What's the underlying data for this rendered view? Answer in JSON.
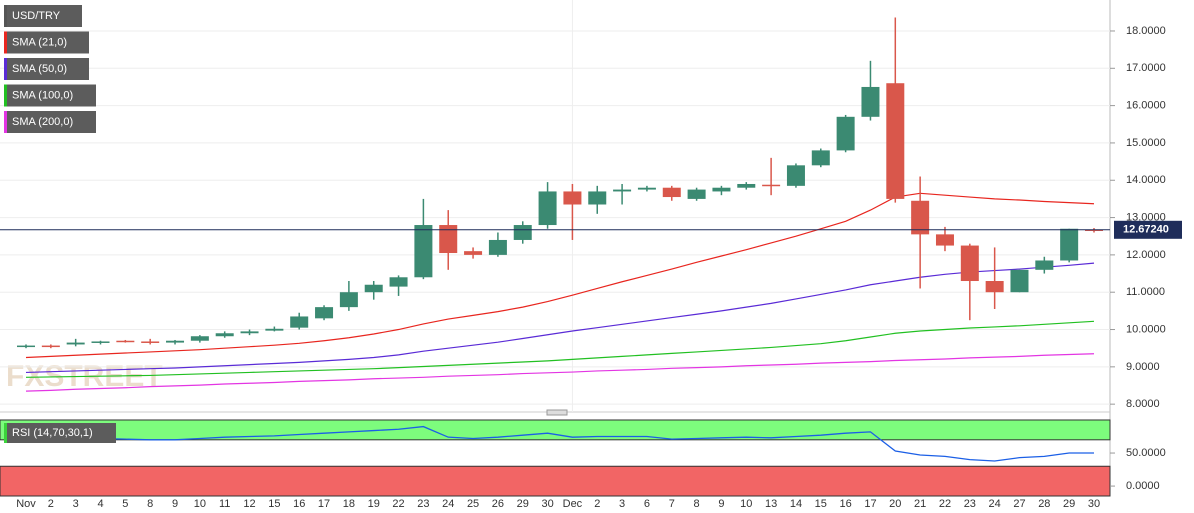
{
  "chart_data": [
    {
      "type": "candlestick",
      "legend": [
        "USD/TRY",
        "SMA (21,0)",
        "SMA (50,0)",
        "SMA (100,0)",
        "SMA (200,0)"
      ],
      "watermark": "FXSTREET",
      "categories": [
        "Nov",
        "2",
        "3",
        "4",
        "5",
        "8",
        "9",
        "10",
        "11",
        "12",
        "15",
        "16",
        "17",
        "18",
        "19",
        "22",
        "23",
        "24",
        "25",
        "26",
        "29",
        "30",
        "Dec",
        "2",
        "3",
        "6",
        "7",
        "8",
        "9",
        "10",
        "13",
        "14",
        "15",
        "16",
        "17",
        "20",
        "21",
        "22",
        "23",
        "24",
        "27",
        "28",
        "29",
        "30"
      ],
      "open": [
        9.55,
        9.57,
        9.6,
        9.65,
        9.7,
        9.68,
        9.65,
        9.7,
        9.82,
        9.9,
        9.97,
        10.05,
        10.3,
        10.6,
        11.0,
        11.15,
        11.4,
        12.8,
        12.1,
        12.0,
        12.4,
        12.8,
        13.7,
        13.35,
        13.7,
        13.75,
        13.8,
        13.5,
        13.7,
        13.8,
        13.88,
        13.85,
        14.4,
        14.8,
        15.7,
        16.6,
        13.45,
        12.55,
        12.25,
        11.3,
        11.0,
        11.6,
        11.85,
        12.68
      ],
      "high": [
        9.6,
        9.6,
        9.75,
        9.7,
        9.72,
        9.75,
        9.72,
        9.85,
        9.95,
        10.0,
        10.08,
        10.45,
        10.65,
        11.3,
        11.3,
        11.45,
        13.5,
        13.2,
        12.2,
        12.6,
        12.9,
        13.95,
        13.9,
        13.85,
        13.9,
        13.85,
        13.85,
        13.8,
        13.85,
        13.95,
        14.6,
        14.45,
        14.85,
        15.75,
        17.2,
        18.36,
        14.1,
        12.75,
        12.3,
        12.2,
        11.6,
        11.95,
        12.7,
        12.72
      ],
      "low": [
        9.5,
        9.5,
        9.55,
        9.6,
        9.65,
        9.6,
        9.6,
        9.65,
        9.78,
        9.85,
        9.95,
        10.0,
        10.25,
        10.5,
        10.8,
        10.9,
        11.35,
        11.6,
        11.9,
        11.95,
        12.3,
        12.7,
        12.4,
        13.1,
        13.35,
        13.7,
        13.45,
        13.45,
        13.6,
        13.75,
        13.6,
        13.8,
        14.35,
        14.75,
        15.6,
        13.4,
        11.1,
        12.1,
        10.25,
        10.55,
        11.0,
        11.5,
        11.8,
        12.6
      ],
      "close": [
        9.57,
        9.55,
        9.65,
        9.68,
        9.68,
        9.65,
        9.7,
        9.82,
        9.9,
        9.95,
        10.02,
        10.35,
        10.6,
        11.0,
        11.2,
        11.4,
        12.8,
        12.05,
        12.0,
        12.4,
        12.8,
        13.7,
        13.35,
        13.7,
        13.75,
        13.8,
        13.55,
        13.75,
        13.8,
        13.9,
        13.85,
        14.4,
        14.8,
        15.7,
        16.5,
        13.5,
        12.55,
        12.25,
        11.3,
        11.0,
        11.6,
        11.85,
        12.7,
        12.67
      ],
      "up_color": "#3b8a72",
      "down_color": "#d9574b",
      "series": [
        {
          "name": "SMA (21,0)",
          "color": "#e8261f",
          "values": [
            9.25,
            9.28,
            9.31,
            9.34,
            9.37,
            9.4,
            9.43,
            9.46,
            9.5,
            9.54,
            9.58,
            9.63,
            9.7,
            9.78,
            9.88,
            10.0,
            10.15,
            10.28,
            10.38,
            10.48,
            10.6,
            10.75,
            10.92,
            11.1,
            11.28,
            11.45,
            11.62,
            11.8,
            11.97,
            12.14,
            12.32,
            12.5,
            12.7,
            12.9,
            13.2,
            13.55,
            13.65,
            13.6,
            13.55,
            13.5,
            13.47,
            13.43,
            13.4,
            13.37
          ]
        },
        {
          "name": "SMA (50,0)",
          "color": "#5a2bd6",
          "values": [
            8.85,
            8.87,
            8.89,
            8.91,
            8.93,
            8.95,
            8.97,
            9.0,
            9.03,
            9.06,
            9.09,
            9.12,
            9.16,
            9.2,
            9.25,
            9.32,
            9.42,
            9.5,
            9.58,
            9.66,
            9.76,
            9.86,
            9.96,
            10.05,
            10.14,
            10.23,
            10.32,
            10.41,
            10.5,
            10.6,
            10.7,
            10.82,
            10.94,
            11.06,
            11.2,
            11.3,
            11.4,
            11.48,
            11.54,
            11.58,
            11.62,
            11.67,
            11.72,
            11.78
          ]
        },
        {
          "name": "SMA (100,0)",
          "color": "#22c022",
          "values": [
            8.72,
            8.73,
            8.74,
            8.75,
            8.76,
            8.77,
            8.79,
            8.81,
            8.83,
            8.85,
            8.87,
            8.89,
            8.91,
            8.93,
            8.95,
            8.98,
            9.01,
            9.04,
            9.07,
            9.1,
            9.13,
            9.16,
            9.2,
            9.24,
            9.28,
            9.32,
            9.36,
            9.4,
            9.44,
            9.48,
            9.52,
            9.57,
            9.62,
            9.7,
            9.8,
            9.9,
            9.96,
            10.0,
            10.04,
            10.07,
            10.1,
            10.14,
            10.18,
            10.22
          ]
        },
        {
          "name": "SMA (200,0)",
          "color": "#e335e3",
          "values": [
            8.35,
            8.37,
            8.4,
            8.42,
            8.44,
            8.47,
            8.49,
            8.51,
            8.54,
            8.56,
            8.58,
            8.61,
            8.63,
            8.65,
            8.68,
            8.7,
            8.72,
            8.75,
            8.77,
            8.79,
            8.82,
            8.84,
            8.86,
            8.89,
            8.91,
            8.93,
            8.96,
            8.98,
            9.0,
            9.03,
            9.05,
            9.07,
            9.1,
            9.12,
            9.14,
            9.17,
            9.19,
            9.21,
            9.24,
            9.26,
            9.28,
            9.31,
            9.33,
            9.35
          ]
        }
      ],
      "last_price": 12.6724,
      "last_price_label": "12.67240",
      "ylim": [
        7.79,
        18.83
      ],
      "yticks": [
        {
          "value": 8,
          "label": "8.0000"
        },
        {
          "value": 9,
          "label": "9.0000"
        },
        {
          "value": 10,
          "label": "10.0000"
        },
        {
          "value": 11,
          "label": "11.0000"
        },
        {
          "value": 12,
          "label": "12.0000"
        },
        {
          "value": 13,
          "label": "13.0000"
        },
        {
          "value": 14,
          "label": "14.0000"
        },
        {
          "value": 15,
          "label": "15.0000"
        },
        {
          "value": 16,
          "label": "16.0000"
        },
        {
          "value": 17,
          "label": "17.0000"
        },
        {
          "value": 18,
          "label": "18.0000"
        }
      ],
      "grid": true
    },
    {
      "type": "line",
      "legend": "RSI (14,70,30,1)",
      "series": [
        {
          "name": "RSI (14,70,30,1)",
          "color": "#1b5fe6",
          "values": [
            72,
            71,
            71,
            72,
            71,
            70,
            70,
            72,
            74,
            75,
            76,
            78,
            80,
            82,
            84,
            86,
            90,
            74,
            72,
            74,
            77,
            80,
            74,
            75,
            75,
            75,
            71,
            72,
            73,
            74,
            73,
            75,
            77,
            80,
            82,
            53,
            47,
            45,
            40,
            38,
            43,
            45,
            50,
            50
          ]
        }
      ],
      "overbought": 70,
      "oversold": 30,
      "band_top": 100,
      "ylim": [
        -15,
        103
      ],
      "yticks": [
        {
          "value": 0,
          "label": "0.0000"
        },
        {
          "value": 50,
          "label": "50.0000"
        }
      ]
    }
  ]
}
